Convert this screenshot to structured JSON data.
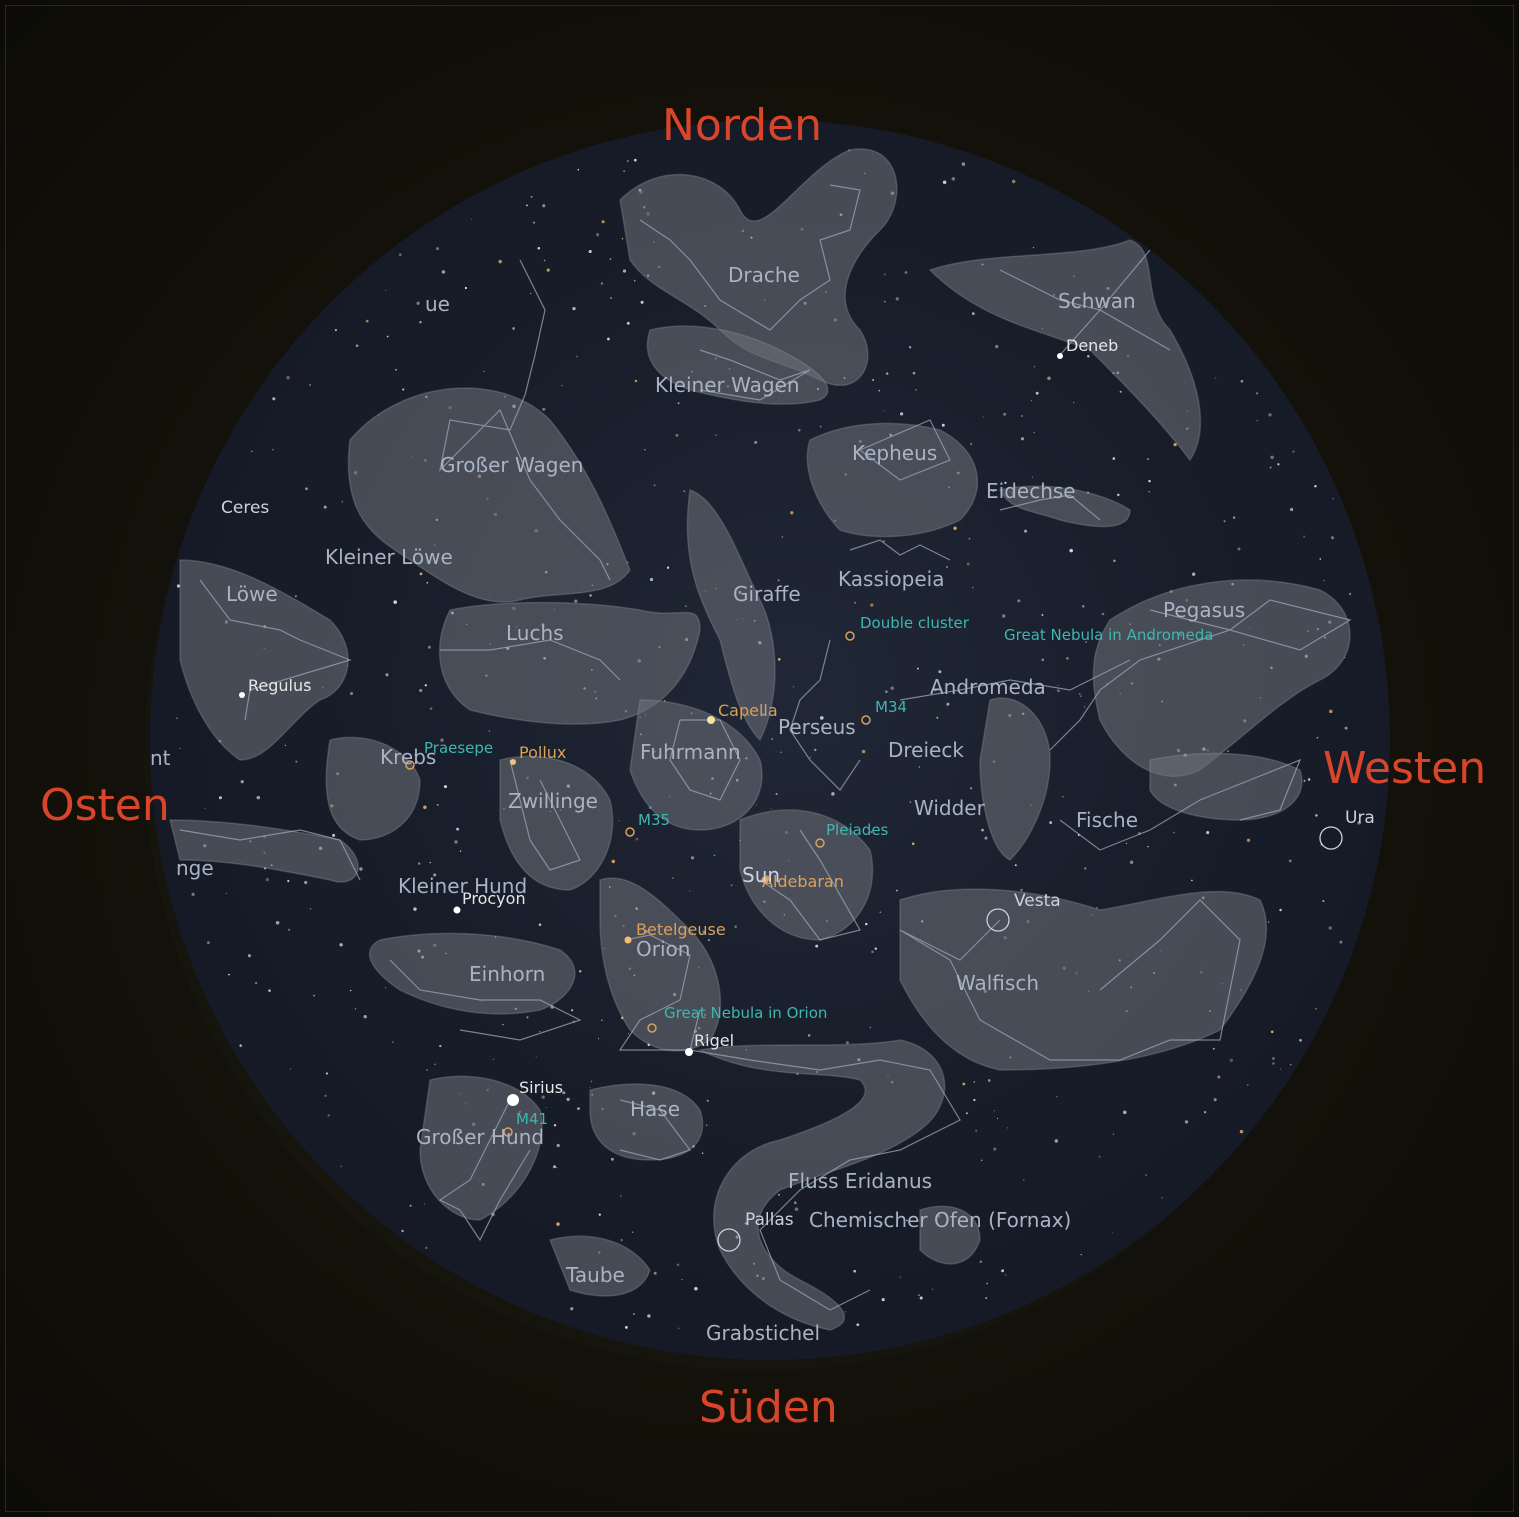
{
  "cardinals": {
    "north": "Norden",
    "east": "Osten",
    "south": "Süden",
    "west": "Westen"
  },
  "colors": {
    "cardinal": "#d8452a",
    "constellation_label": "#a8b3c4",
    "star_label": "#d9a15a",
    "nebula_label": "#3fb6b0",
    "planet_label": "#c9d2de",
    "art": "#6f737c",
    "lines": "#9aa6b8"
  },
  "constellations": [
    "Drache",
    "Schwan",
    "Kleiner Wagen",
    "Kepheus",
    "Großer Wagen",
    "Eidechse",
    "Kleiner Löwe",
    "Kassiopeia",
    "Löwe",
    "Giraffe",
    "Pegasus",
    "Luchs",
    "Andromeda",
    "Perseus",
    "Fuhrmann",
    "Dreieck",
    "Krebs",
    "Widder",
    "Zwillinge",
    "Fische",
    "Kleiner Hund",
    "Orion",
    "Einhorn",
    "Walfisch",
    "Hase",
    "Großer Hund",
    "Fluss Eridanus",
    "Chemischer Ofen (Fornax)",
    "Taube",
    "Grabstichel",
    "ue",
    "nt",
    "nge"
  ],
  "stars": [
    "Deneb",
    "Capella",
    "Pollux",
    "Aldebaran",
    "Betelgeuse",
    "Procyon",
    "Rigel",
    "Sirius",
    "Regulus"
  ],
  "deep_sky": [
    "Double cluster",
    "Great Nebula in Andromeda",
    "M34",
    "Praesepe",
    "Pleiades",
    "M35",
    "Great Nebula in Orion",
    "M41"
  ],
  "solar_system": [
    "Ceres",
    "Vesta",
    "Pallas",
    "Ura",
    "Sun"
  ]
}
